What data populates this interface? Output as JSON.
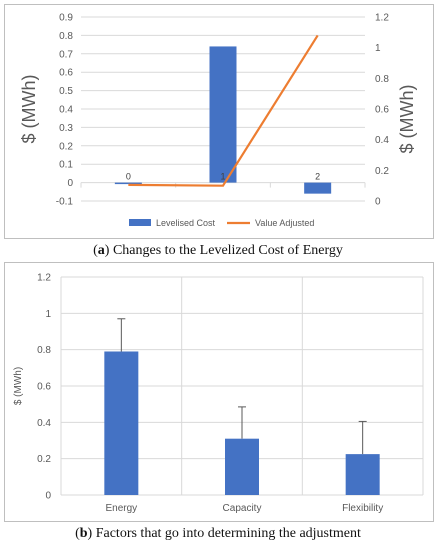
{
  "captions": {
    "a": {
      "letter": "a",
      "text": " Changes to the Levelized Cost of Energy"
    },
    "b": {
      "letter": "b",
      "text": " Factors that go into determining the adjustment"
    }
  },
  "colors": {
    "bar": "#4472c4",
    "line": "#ed7d31",
    "grid": "#d9d9d9",
    "error": "#595959"
  },
  "chart_data": [
    {
      "type": "bar+line",
      "title": "",
      "categories": [
        "0",
        "1",
        "2"
      ],
      "series": [
        {
          "name": "Levelised Cost",
          "axis": "left",
          "kind": "bar",
          "values": [
            -0.005,
            0.74,
            -0.06
          ]
        },
        {
          "name": "Value Adjusted",
          "axis": "right",
          "kind": "line",
          "values": [
            0.105,
            0.1,
            1.08
          ]
        }
      ],
      "ylabel": "$ (MWh)",
      "y2label": "$ (MWh)",
      "ylim": [
        -0.1,
        0.9
      ],
      "yticks": [
        "-0.1",
        "0",
        "0.1",
        "0.2",
        "0.3",
        "0.4",
        "0.5",
        "0.6",
        "0.7",
        "0.8",
        "0.9"
      ],
      "y2lim": [
        0,
        1.2
      ],
      "y2ticks": [
        "0",
        "0.2",
        "0.4",
        "0.6",
        "0.8",
        "1",
        "1.2"
      ],
      "legend": "bottom",
      "grid": true
    },
    {
      "type": "bar",
      "title": "",
      "categories": [
        "Energy",
        "Capacity",
        "Flexibility"
      ],
      "values": [
        0.79,
        0.31,
        0.225
      ],
      "error_upper": [
        0.97,
        0.485,
        0.405
      ],
      "ylabel": "$ (MWh)",
      "ylim": [
        0,
        1.2
      ],
      "yticks": [
        "0",
        "0.2",
        "0.4",
        "0.6",
        "0.8",
        "1",
        "1.2"
      ],
      "grid": true
    }
  ]
}
